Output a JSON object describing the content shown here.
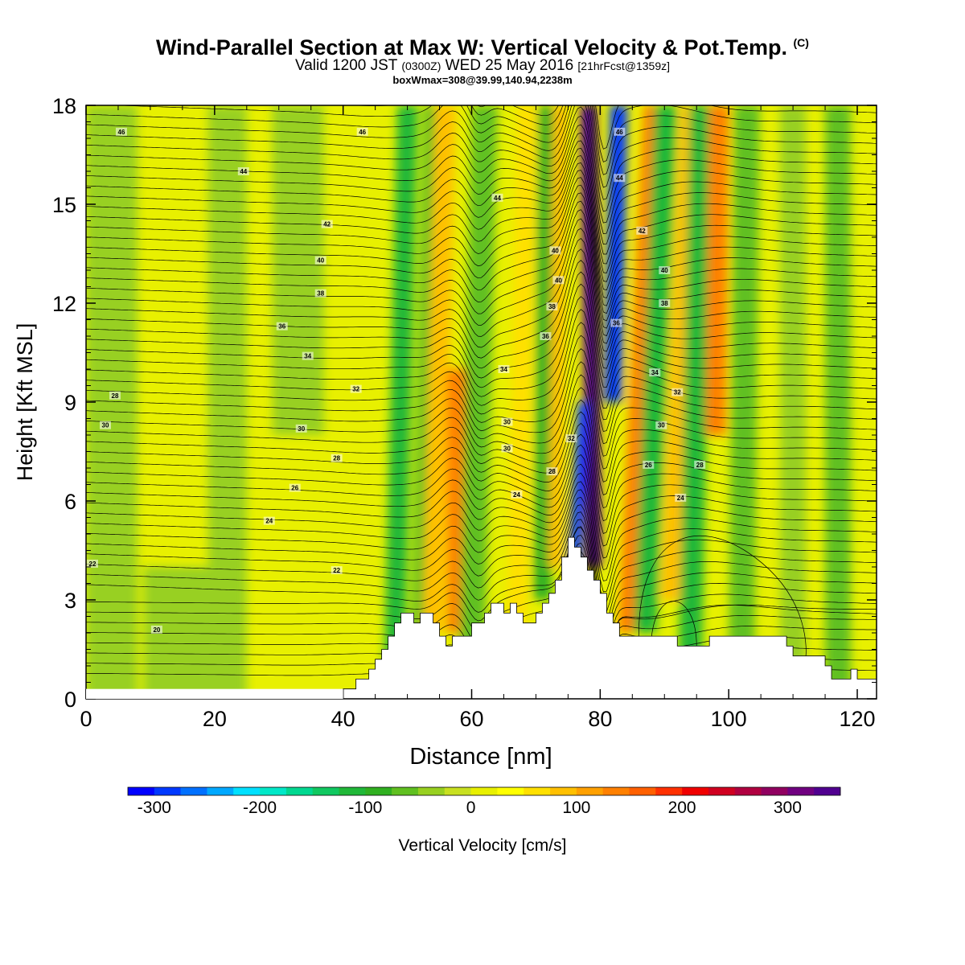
{
  "title": {
    "main": "Wind-Parallel Section at Max W: Vertical Velocity & Pot.Temp.",
    "copyright": "(C)",
    "valid_prefix": "Valid 1200 JST",
    "valid_zulu": "(0300Z)",
    "valid_date": "WED 25 May 2016",
    "forecast": "[21hrFcst@1359z]",
    "box_info": "boxWmax=308@39.99,140.94,2238m"
  },
  "chart_data": {
    "type": "heatmap",
    "xlabel": "Distance [nm]",
    "ylabel": "Height [Kft MSL]",
    "xlim": [
      0,
      123
    ],
    "ylim": [
      0,
      18
    ],
    "x_ticks": [
      0,
      20,
      40,
      60,
      80,
      100,
      120
    ],
    "y_ticks": [
      0,
      3,
      6,
      9,
      12,
      15,
      18
    ],
    "grid": false,
    "colorbar": {
      "label": "Vertical Velocity [cm/s]",
      "tick_values": [
        -300,
        -200,
        -100,
        0,
        100,
        200,
        300
      ],
      "range": [
        -325,
        350
      ],
      "step": 25,
      "colors": [
        "#0000ff",
        "#0038ff",
        "#0070ff",
        "#00a8ff",
        "#00e0ff",
        "#00e8c8",
        "#00d890",
        "#10c860",
        "#20b838",
        "#30b020",
        "#60c020",
        "#98d020",
        "#c8e020",
        "#e8f000",
        "#ffff00",
        "#ffe000",
        "#ffc000",
        "#ffa000",
        "#ff8000",
        "#ff6000",
        "#ff3000",
        "#f00000",
        "#d00020",
        "#b00040",
        "#900060",
        "#700080",
        "#500090"
      ]
    },
    "terrain": [
      [
        40,
        0.3
      ],
      [
        42,
        0.6
      ],
      [
        44,
        0.9
      ],
      [
        45,
        1.2
      ],
      [
        46,
        1.5
      ],
      [
        47,
        1.9
      ],
      [
        48,
        2.3
      ],
      [
        49,
        2.6
      ],
      [
        51,
        2.3
      ],
      [
        52,
        2.6
      ],
      [
        54,
        2.3
      ],
      [
        55,
        1.9
      ],
      [
        56,
        1.6
      ],
      [
        57,
        1.9
      ],
      [
        59,
        1.9
      ],
      [
        60,
        2.3
      ],
      [
        62,
        2.6
      ],
      [
        63,
        2.9
      ],
      [
        65,
        2.6
      ],
      [
        66,
        2.9
      ],
      [
        67,
        2.6
      ],
      [
        68,
        2.3
      ],
      [
        70,
        2.6
      ],
      [
        71,
        2.9
      ],
      [
        72,
        3.2
      ],
      [
        73,
        3.6
      ],
      [
        74,
        4.3
      ],
      [
        75,
        4.9
      ],
      [
        76,
        4.6
      ],
      [
        77,
        4.3
      ],
      [
        78,
        3.9
      ],
      [
        79,
        3.6
      ],
      [
        80,
        3.2
      ],
      [
        81,
        2.6
      ],
      [
        82,
        2.3
      ],
      [
        83,
        1.9
      ],
      [
        91,
        1.9
      ],
      [
        92,
        1.6
      ],
      [
        96,
        1.6
      ],
      [
        97,
        1.9
      ],
      [
        107,
        1.9
      ],
      [
        109,
        1.6
      ],
      [
        110,
        1.3
      ],
      [
        114,
        1.3
      ],
      [
        115,
        1.0
      ],
      [
        116,
        0.6
      ],
      [
        118,
        0.6
      ],
      [
        119,
        0.9
      ],
      [
        120,
        0.6
      ]
    ],
    "theta_contour_labels": [
      {
        "x": 5.5,
        "y": 17.2,
        "v": "46"
      },
      {
        "x": 43,
        "y": 17.2,
        "v": "46"
      },
      {
        "x": 24.5,
        "y": 16.0,
        "v": "44"
      },
      {
        "x": 64,
        "y": 15.2,
        "v": "44"
      },
      {
        "x": 37.5,
        "y": 14.4,
        "v": "42"
      },
      {
        "x": 36.5,
        "y": 13.3,
        "v": "40"
      },
      {
        "x": 36.5,
        "y": 12.3,
        "v": "38"
      },
      {
        "x": 30.5,
        "y": 11.3,
        "v": "36"
      },
      {
        "x": 34.5,
        "y": 10.4,
        "v": "34"
      },
      {
        "x": 42,
        "y": 9.4,
        "v": "32"
      },
      {
        "x": 4.5,
        "y": 9.2,
        "v": "28"
      },
      {
        "x": 3,
        "y": 8.3,
        "v": "30"
      },
      {
        "x": 33.5,
        "y": 8.2,
        "v": "30"
      },
      {
        "x": 39,
        "y": 7.3,
        "v": "28"
      },
      {
        "x": 32.5,
        "y": 6.4,
        "v": "26"
      },
      {
        "x": 28.5,
        "y": 5.4,
        "v": "24"
      },
      {
        "x": 39,
        "y": 3.9,
        "v": "22"
      },
      {
        "x": 1,
        "y": 4.1,
        "v": "22"
      },
      {
        "x": 11,
        "y": 2.1,
        "v": "20"
      },
      {
        "x": 73,
        "y": 13.6,
        "v": "40"
      },
      {
        "x": 73.5,
        "y": 12.7,
        "v": "40"
      },
      {
        "x": 72.5,
        "y": 11.9,
        "v": "38"
      },
      {
        "x": 71.5,
        "y": 11.0,
        "v": "36"
      },
      {
        "x": 65,
        "y": 10.0,
        "v": "34"
      },
      {
        "x": 65.5,
        "y": 8.4,
        "v": "30"
      },
      {
        "x": 65.5,
        "y": 7.6,
        "v": "30"
      },
      {
        "x": 75.5,
        "y": 7.9,
        "v": "32"
      },
      {
        "x": 72.5,
        "y": 6.9,
        "v": "28"
      },
      {
        "x": 67,
        "y": 6.2,
        "v": "24"
      },
      {
        "x": 83,
        "y": 17.2,
        "v": "46"
      },
      {
        "x": 83,
        "y": 15.8,
        "v": "44"
      },
      {
        "x": 86.5,
        "y": 14.2,
        "v": "42"
      },
      {
        "x": 90,
        "y": 13.0,
        "v": "40"
      },
      {
        "x": 90,
        "y": 12.0,
        "v": "38"
      },
      {
        "x": 82.5,
        "y": 11.4,
        "v": "36"
      },
      {
        "x": 88.5,
        "y": 9.9,
        "v": "34"
      },
      {
        "x": 92,
        "y": 9.3,
        "v": "32"
      },
      {
        "x": 89.5,
        "y": 8.3,
        "v": "30"
      },
      {
        "x": 87.5,
        "y": 7.1,
        "v": "26"
      },
      {
        "x": 95.5,
        "y": 7.1,
        "v": "28"
      },
      {
        "x": 92.5,
        "y": 6.1,
        "v": "24"
      }
    ]
  }
}
